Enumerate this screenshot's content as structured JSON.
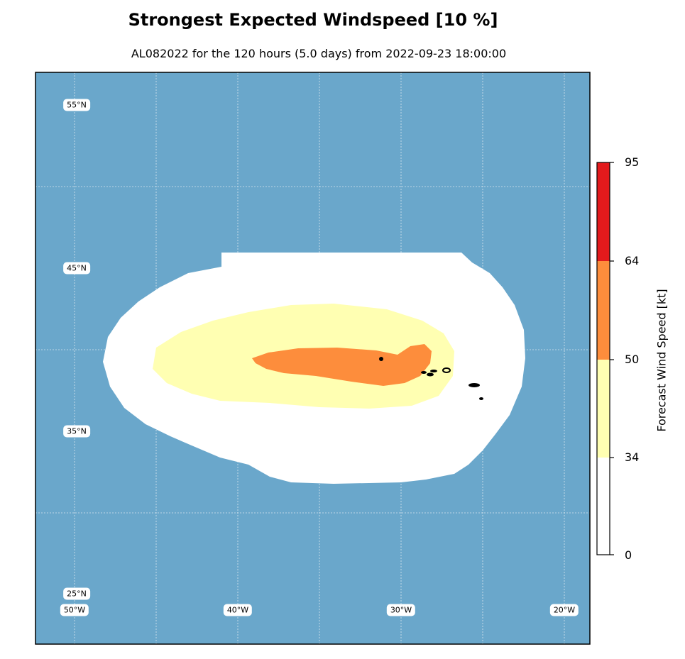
{
  "title": "Strongest Expected Windspeed [10 %]",
  "subtitle": "AL082022 for the 120 hours (5.0 days) from 2022-09-23 18:00:00",
  "colorbar": {
    "label": "Forecast Wind Speed [kt]",
    "ticks": [
      "0",
      "34",
      "50",
      "64",
      "95"
    ],
    "bands": [
      {
        "from": 0,
        "to": 34,
        "color": "#ffffff"
      },
      {
        "from": 34,
        "to": 50,
        "color": "#ffffb2"
      },
      {
        "from": 50,
        "to": 64,
        "color": "#fd8d3c"
      },
      {
        "from": 64,
        "to": 95,
        "color": "#e31a1c"
      }
    ]
  },
  "map": {
    "ocean_color": "#6aa7cb",
    "lat_labels": [
      "55°N",
      "45°N",
      "35°N",
      "25°N"
    ],
    "lon_labels": [
      "50°W",
      "40°W",
      "30°W",
      "20°W"
    ]
  }
}
